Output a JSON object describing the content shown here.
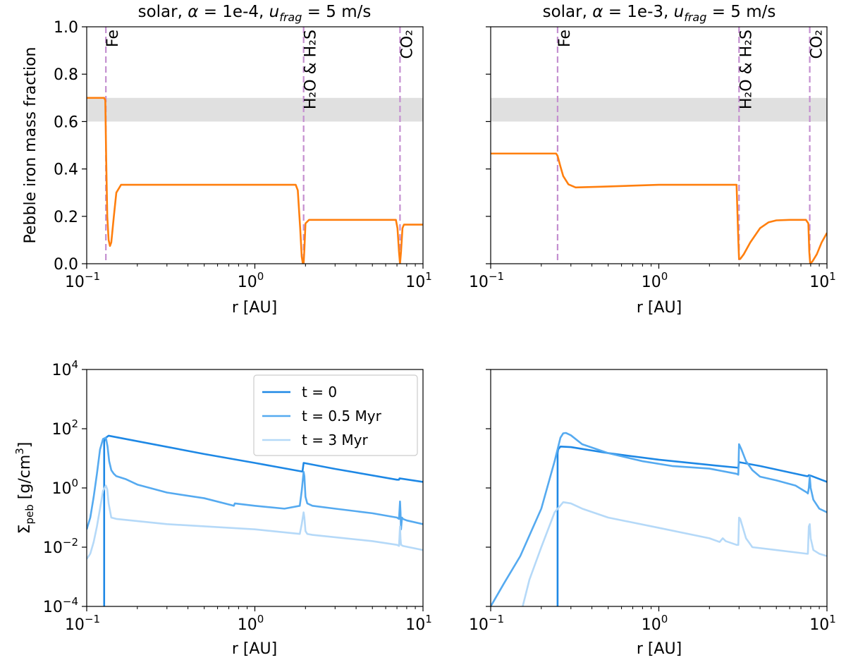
{
  "chart_data": [
    {
      "id": "top-left",
      "type": "line",
      "title_prefix": "solar, ",
      "title_alpha": "α",
      "title_alpha_value": " = 1e-4, ",
      "title_u": "u",
      "title_u_sub": "frag",
      "title_u_value": " = 5 m/s",
      "xlabel": "r [AU]",
      "ylabel": "Pebble iron mass fraction",
      "xscale": "log",
      "xlim": [
        0.1,
        10
      ],
      "ylim": [
        0,
        1.0
      ],
      "yticks": [
        0.0,
        0.2,
        0.4,
        0.6,
        0.8,
        1.0
      ],
      "yticklabels": [
        "0.0",
        "0.2",
        "0.4",
        "0.6",
        "0.8",
        "1.0"
      ],
      "xticks": [
        0.1,
        1,
        10
      ],
      "xtick_base": "10",
      "xtick_exps": [
        "−1",
        "0",
        "1"
      ],
      "band": {
        "from": 0.6,
        "to": 0.7,
        "color": "#e0e0e0"
      },
      "iceline_color": "#c48fd0",
      "icelines": [
        {
          "x": 0.13,
          "label": "Fe"
        },
        {
          "x": 1.95,
          "label": "H₂O & H₂S"
        },
        {
          "x": 7.3,
          "label": "CO₂"
        }
      ],
      "series": [
        {
          "name": "iron fraction",
          "color": "#ff7f0e",
          "x": [
            0.1,
            0.127,
            0.129,
            0.1305,
            0.1325,
            0.135,
            0.1375,
            0.14,
            0.145,
            0.15,
            0.16,
            0.3,
            1.0,
            1.75,
            1.8,
            1.86,
            1.9,
            1.93,
            1.95,
            1.97,
            2.0,
            2.1,
            3.0,
            6.0,
            6.9,
            7.05,
            7.2,
            7.3,
            7.4,
            7.55,
            7.7,
            8.0,
            10.0
          ],
          "y": [
            0.7,
            0.7,
            0.69,
            0.45,
            0.2,
            0.1,
            0.075,
            0.09,
            0.2,
            0.3,
            0.333,
            0.333,
            0.333,
            0.333,
            0.31,
            0.15,
            0.03,
            0.0,
            0.0,
            0.06,
            0.17,
            0.185,
            0.185,
            0.185,
            0.185,
            0.15,
            0.05,
            0.0,
            0.05,
            0.15,
            0.165,
            0.165,
            0.165
          ]
        }
      ]
    },
    {
      "id": "top-right",
      "type": "line",
      "title_prefix": "solar, ",
      "title_alpha": "α",
      "title_alpha_value": " = 1e-3, ",
      "title_u": "u",
      "title_u_sub": "frag",
      "title_u_value": " = 5 m/s",
      "xlabel": "r [AU]",
      "xscale": "log",
      "xlim": [
        0.1,
        10
      ],
      "ylim": [
        0,
        1.0
      ],
      "xticks": [
        0.1,
        1,
        10
      ],
      "xtick_base": "10",
      "xtick_exps": [
        "−1",
        "0",
        "1"
      ],
      "band": {
        "from": 0.6,
        "to": 0.7,
        "color": "#e0e0e0"
      },
      "iceline_color": "#c48fd0",
      "icelines": [
        {
          "x": 0.25,
          "label": "Fe"
        },
        {
          "x": 3.0,
          "label": "H₂O & H₂S"
        },
        {
          "x": 7.9,
          "label": "CO₂"
        }
      ],
      "series": [
        {
          "name": "iron fraction",
          "color": "#ff7f0e",
          "x": [
            0.1,
            0.245,
            0.25,
            0.26,
            0.27,
            0.29,
            0.32,
            0.45,
            1.0,
            2.0,
            2.9,
            2.97,
            3.0,
            3.05,
            3.2,
            3.5,
            4.0,
            4.5,
            5.0,
            6.0,
            7.5,
            7.75,
            7.85,
            7.95,
            8.2,
            8.7,
            9.3,
            10.0
          ],
          "y": [
            0.465,
            0.465,
            0.455,
            0.41,
            0.37,
            0.335,
            0.322,
            0.325,
            0.333,
            0.333,
            0.333,
            0.1,
            0.02,
            0.02,
            0.04,
            0.09,
            0.15,
            0.175,
            0.183,
            0.185,
            0.185,
            0.17,
            0.05,
            0.0,
            0.01,
            0.04,
            0.09,
            0.13
          ]
        }
      ]
    },
    {
      "id": "bottom-left",
      "type": "line",
      "xlabel": "r [AU]",
      "ylabel_sigma": "Σ",
      "ylabel_sub": "peb",
      "ylabel_rest": " [g/cm",
      "ylabel_sup": "3",
      "ylabel_close": "]",
      "xscale": "log",
      "yscale": "log",
      "xlim": [
        0.1,
        10
      ],
      "ylim": [
        0.0001,
        10000
      ],
      "xticks": [
        0.1,
        1,
        10
      ],
      "xtick_base": "10",
      "xtick_exps": [
        "−1",
        "0",
        "1"
      ],
      "yticks": [
        0.0001,
        0.01,
        1,
        100,
        10000
      ],
      "ytick_base": "10",
      "ytick_exps": [
        "−4",
        "−2",
        "0",
        "2",
        "4"
      ],
      "legend": {
        "location": "upper-center"
      },
      "series": [
        {
          "name": "t = 0",
          "color": "#1e88e5",
          "x": [
            0.127,
            0.127,
            0.1275,
            0.13,
            0.135,
            0.5,
            1.0,
            1.9,
            1.92,
            1.95,
            2.0,
            3.0,
            7.0,
            7.2,
            7.25,
            7.5,
            10.0
          ],
          "y": [
            0.0001,
            35,
            40,
            50,
            58,
            14,
            7,
            3.6,
            3.6,
            7.0,
            6.8,
            4.4,
            1.9,
            1.9,
            2.1,
            2.05,
            1.6
          ]
        },
        {
          "name": "t = 0.5 Myr",
          "color": "#55aaf0",
          "x": [
            0.1,
            0.105,
            0.11,
            0.115,
            0.12,
            0.125,
            0.13,
            0.133,
            0.136,
            0.14,
            0.145,
            0.15,
            0.17,
            0.2,
            0.3,
            0.5,
            0.75,
            0.76,
            1.0,
            1.5,
            1.85,
            1.9,
            1.95,
            1.97,
            2.0,
            2.05,
            2.2,
            3.0,
            5.0,
            7.0,
            7.2,
            7.3,
            7.35,
            7.4,
            7.5,
            7.6,
            8.0,
            10.0
          ],
          "y": [
            0.04,
            0.1,
            0.5,
            3,
            20,
            45,
            50,
            25,
            8,
            4,
            3,
            2.5,
            2.0,
            1.3,
            0.7,
            0.45,
            0.25,
            0.3,
            0.25,
            0.2,
            0.25,
            0.8,
            3.5,
            2.5,
            0.5,
            0.3,
            0.25,
            0.2,
            0.14,
            0.1,
            0.09,
            0.35,
            0.15,
            0.04,
            0.1,
            0.09,
            0.08,
            0.06
          ]
        },
        {
          "name": "t = 3 Myr",
          "color": "#b5d9f8",
          "x": [
            0.1,
            0.105,
            0.11,
            0.115,
            0.12,
            0.125,
            0.13,
            0.1325,
            0.135,
            0.14,
            0.15,
            0.3,
            1.0,
            1.85,
            1.9,
            1.95,
            1.97,
            2.0,
            2.05,
            2.2,
            5.0,
            7.0,
            7.2,
            7.3,
            7.35,
            7.4,
            7.6,
            10.0
          ],
          "y": [
            0.004,
            0.006,
            0.015,
            0.05,
            0.2,
            0.8,
            1.2,
            0.9,
            0.3,
            0.1,
            0.09,
            0.06,
            0.04,
            0.028,
            0.06,
            0.15,
            0.1,
            0.035,
            0.028,
            0.026,
            0.016,
            0.012,
            0.011,
            0.05,
            0.02,
            0.012,
            0.011,
            0.008
          ]
        }
      ]
    },
    {
      "id": "bottom-right",
      "type": "line",
      "xlabel": "r [AU]",
      "xscale": "log",
      "yscale": "log",
      "xlim": [
        0.1,
        10
      ],
      "ylim": [
        0.0001,
        10000
      ],
      "xticks": [
        0.1,
        1,
        10
      ],
      "xtick_base": "10",
      "xtick_exps": [
        "−1",
        "0",
        "1"
      ],
      "series": [
        {
          "name": "t = 0",
          "color": "#1e88e5",
          "x": [
            0.25,
            0.25,
            0.252,
            0.26,
            0.3,
            0.5,
            1.0,
            2.0,
            2.97,
            3.0,
            3.05,
            4.0,
            7.6,
            7.7,
            7.8,
            8.0,
            10.0
          ],
          "y": [
            0.0001,
            15,
            20,
            25,
            24,
            15,
            9,
            6,
            4.8,
            7.5,
            7.3,
            5.5,
            2.5,
            2.5,
            2.7,
            2.6,
            1.6
          ]
        },
        {
          "name": "t = 0.5 Myr",
          "color": "#55aaf0",
          "x": [
            0.1,
            0.12,
            0.15,
            0.2,
            0.24,
            0.26,
            0.27,
            0.28,
            0.3,
            0.35,
            0.5,
            0.8,
            1.2,
            2.0,
            2.9,
            2.97,
            3.0,
            3.1,
            3.3,
            3.6,
            4.0,
            5.0,
            6.5,
            7.6,
            7.7,
            7.8,
            7.9,
            8.0,
            8.3,
            9.0,
            10.0
          ],
          "y": [
            0.0001,
            0.0006,
            0.005,
            0.2,
            8,
            50,
            70,
            72,
            60,
            30,
            15,
            8,
            5.5,
            4.5,
            3.0,
            2.8,
            30,
            20,
            8,
            4,
            2.4,
            1.8,
            1.2,
            0.7,
            0.65,
            1.0,
            2.5,
            1.0,
            0.4,
            0.2,
            0.15
          ]
        },
        {
          "name": "t = 3 Myr",
          "color": "#b5d9f8",
          "x": [
            0.155,
            0.17,
            0.2,
            0.24,
            0.27,
            0.3,
            0.35,
            0.5,
            1.0,
            2.0,
            2.3,
            2.4,
            2.5,
            2.9,
            2.97,
            3.0,
            3.05,
            3.3,
            3.6,
            5.0,
            7.6,
            7.7,
            7.8,
            7.9,
            8.0,
            8.3,
            9.0,
            10.0
          ],
          "y": [
            0.0001,
            0.0008,
            0.01,
            0.15,
            0.33,
            0.3,
            0.2,
            0.1,
            0.045,
            0.02,
            0.015,
            0.02,
            0.016,
            0.012,
            0.012,
            0.1,
            0.09,
            0.02,
            0.01,
            0.008,
            0.006,
            0.006,
            0.05,
            0.06,
            0.02,
            0.008,
            0.006,
            0.005
          ]
        }
      ]
    }
  ]
}
